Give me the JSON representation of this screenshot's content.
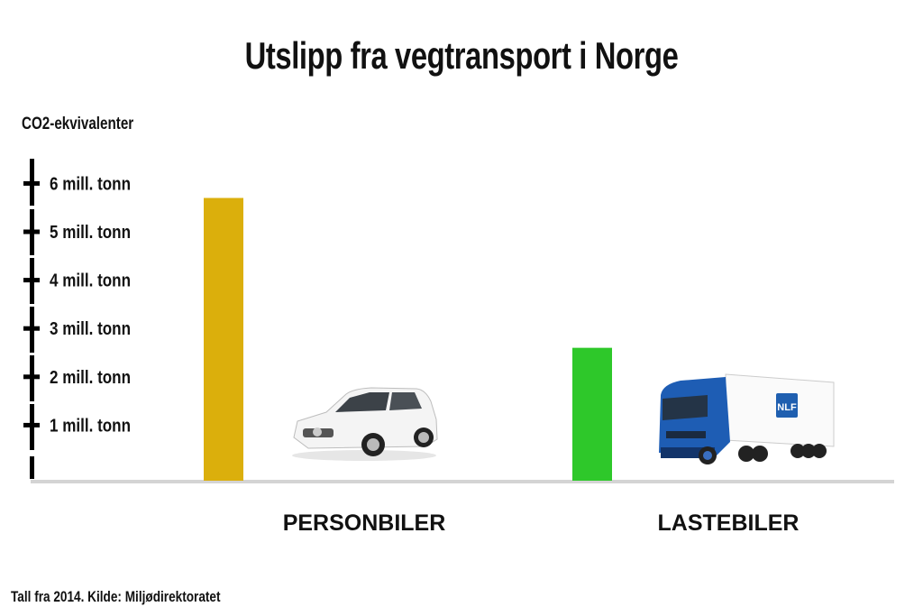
{
  "title": "Utslipp fra vegtransport i Norge",
  "footer": "Tall fra 2014. Kilde: Miljødirektoratet",
  "chart_data": {
    "type": "bar",
    "title": "Utslipp fra vegtransport i Norge",
    "ylabel": "CO2-ekvivalenter",
    "xlabel": "",
    "categories": [
      "PERSONBILER",
      "LASTEBILER"
    ],
    "values": [
      5.7,
      2.6
    ],
    "unit": "mill. tonn",
    "colors": [
      "#DBAF0C",
      "#2EC82A"
    ],
    "ylim": [
      0,
      6
    ],
    "yticks": [
      {
        "value": 6,
        "label": "6 mill. tonn"
      },
      {
        "value": 5,
        "label": "5 mill. tonn"
      },
      {
        "value": 4,
        "label": "4 mill. tonn"
      },
      {
        "value": 3,
        "label": "3 mill. tonn"
      },
      {
        "value": 2,
        "label": "2 mill. tonn"
      },
      {
        "value": 1,
        "label": "1 mill. tonn"
      }
    ],
    "grid": false,
    "legend": "none",
    "icons": [
      "car-icon",
      "truck-icon"
    ],
    "truck_logo": "NLF"
  }
}
